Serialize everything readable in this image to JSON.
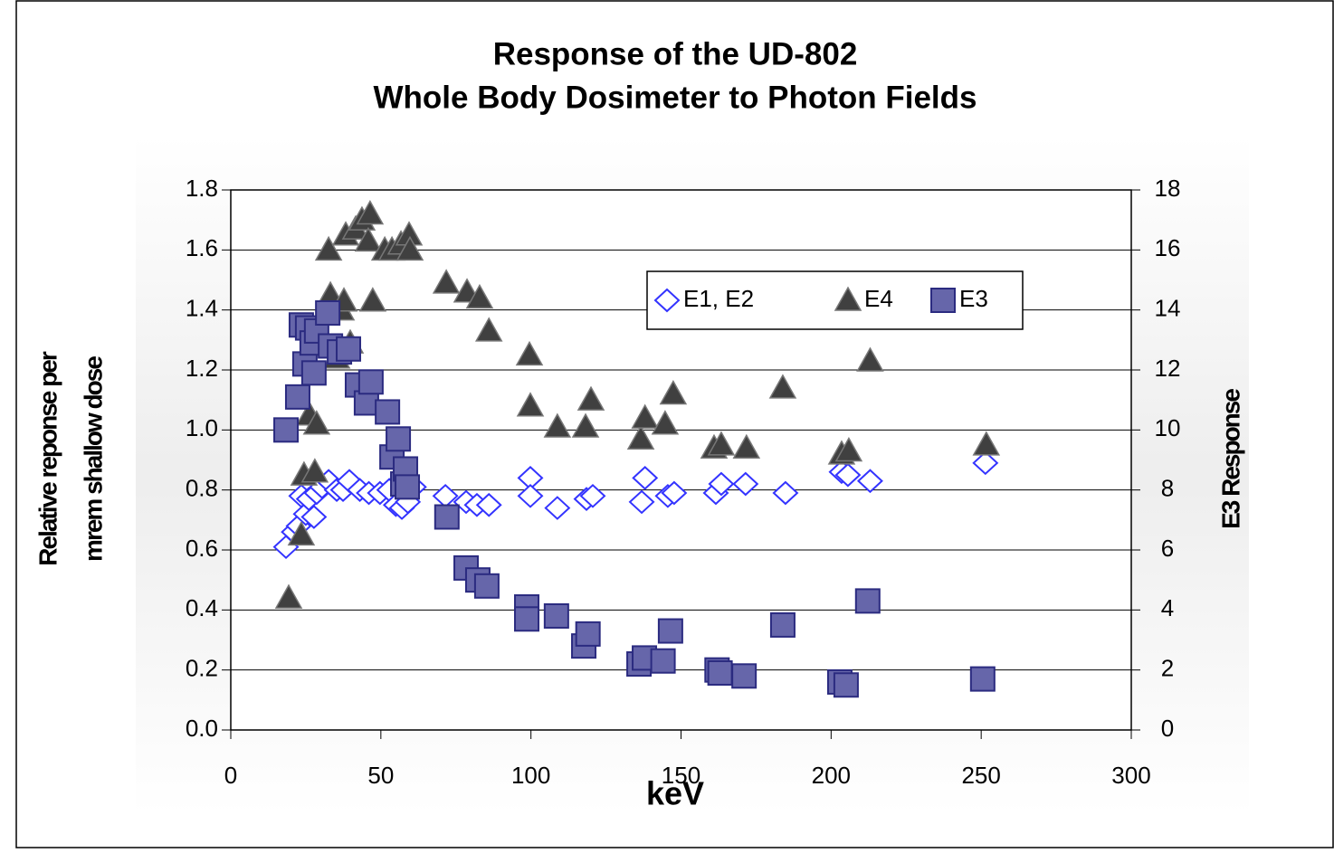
{
  "chart_data": {
    "type": "scatter",
    "title": [
      "Response of the UD-802",
      "Whole Body Dosimeter to Photon Fields"
    ],
    "xlabel": "keV",
    "ylabel": [
      "Relative reponse per",
      "mrem shallow dose"
    ],
    "y2label": "E3 Response",
    "xlim": [
      0,
      300
    ],
    "xticks": [
      0,
      50,
      100,
      150,
      200,
      250,
      300
    ],
    "ylim": [
      0,
      1.8
    ],
    "yticks": [
      {
        "value": 0,
        "label": "0.0"
      },
      0.2,
      0.4,
      0.6,
      0.8,
      {
        "value": 1,
        "label": "1.0"
      },
      1.2,
      1.4,
      1.6,
      1.8
    ],
    "y2lim": [
      0,
      18
    ],
    "y2ticks": [
      0,
      2,
      4,
      6,
      8,
      10,
      12,
      14,
      16,
      18
    ],
    "grid": true,
    "legend": "upper right",
    "series": [
      {
        "name": "E1, E2",
        "marker": "diamond",
        "color": "#ffffff",
        "edge": "#3333ff",
        "x": [
          18.4,
          21,
          22.6,
          23.5,
          25,
          26,
          27.7,
          28.6,
          30.4,
          32.6,
          35.3,
          37.4,
          39.5,
          43,
          46,
          49.7,
          52.8,
          55,
          57,
          59,
          61,
          71.5,
          78.4,
          82,
          86,
          99.8,
          99.8,
          108.8,
          118.5,
          120.6,
          136.9,
          138,
          145.6,
          147.7,
          161.6,
          163.4,
          171.5,
          184.8,
          203.5,
          205.6,
          213,
          251.4
        ],
        "values": [
          0.61,
          0.66,
          0.68,
          0.78,
          0.72,
          0.77,
          0.71,
          0.79,
          0.81,
          0.83,
          0.8,
          0.8,
          0.83,
          0.8,
          0.79,
          0.79,
          0.8,
          0.75,
          0.74,
          0.76,
          0.81,
          0.78,
          0.76,
          0.75,
          0.75,
          0.84,
          0.78,
          0.74,
          0.77,
          0.78,
          0.76,
          0.84,
          0.78,
          0.79,
          0.79,
          0.82,
          0.82,
          0.79,
          0.86,
          0.85,
          0.83,
          0.89
        ]
      },
      {
        "name": "E4",
        "marker": "triangle",
        "color": "#404040",
        "edge": "#777777",
        "x": [
          19.3,
          23.5,
          24.4,
          26.2,
          28,
          28.6,
          32.6,
          33.2,
          35.3,
          36.8,
          37.7,
          38.3,
          39.8,
          41.6,
          43.7,
          45.8,
          46.4,
          47.3,
          51.3,
          53.7,
          56.7,
          59.4,
          59.7,
          71.8,
          78.7,
          82.9,
          86,
          99.5,
          99.8,
          108.8,
          118.2,
          120,
          136.6,
          138,
          144.7,
          147.4,
          161,
          163.4,
          171.8,
          183.9,
          203.5,
          205.9,
          213,
          251.7
        ],
        "values": [
          0.44,
          0.65,
          0.85,
          1.05,
          0.86,
          1.02,
          1.6,
          1.45,
          1.24,
          1.4,
          1.43,
          1.65,
          1.29,
          1.67,
          1.7,
          1.63,
          1.72,
          1.43,
          1.6,
          1.6,
          1.62,
          1.65,
          1.6,
          1.49,
          1.46,
          1.44,
          1.33,
          1.25,
          1.08,
          1.01,
          1.01,
          1.1,
          0.97,
          1.04,
          1.02,
          1.12,
          0.94,
          0.95,
          0.94,
          1.14,
          0.92,
          0.93,
          1.23,
          0.95
        ]
      },
      {
        "name": "E3",
        "marker": "square",
        "color": "#6666aa",
        "edge": "#2b2b80",
        "axis": "y2",
        "x": [
          18.4,
          22.3,
          23.5,
          24.7,
          25.6,
          27.1,
          27.7,
          28.6,
          32.3,
          33.2,
          36.2,
          39.2,
          42.2,
          45.2,
          46.7,
          52.2,
          53.7,
          55.8,
          57.3,
          58.2,
          58.8,
          72,
          78.4,
          82.3,
          85.3,
          98.6,
          98.6,
          108.5,
          117.6,
          119,
          136,
          137.8,
          144,
          146.5,
          162,
          163,
          171,
          183.9,
          202.9,
          205,
          212.2,
          250.5
        ],
        "values": [
          10,
          11.1,
          13.5,
          12.2,
          13.4,
          12.9,
          11.9,
          13.3,
          13.9,
          12.8,
          12.6,
          12.7,
          11.5,
          10.9,
          11.6,
          10.6,
          9.1,
          9.7,
          8.2,
          8.7,
          8.1,
          7.1,
          5.4,
          5,
          4.8,
          4.1,
          3.7,
          3.8,
          2.8,
          3.2,
          2.2,
          2.4,
          2.3,
          3.3,
          2,
          1.9,
          1.8,
          3.5,
          1.6,
          1.5,
          4.3,
          1.7
        ]
      }
    ]
  }
}
